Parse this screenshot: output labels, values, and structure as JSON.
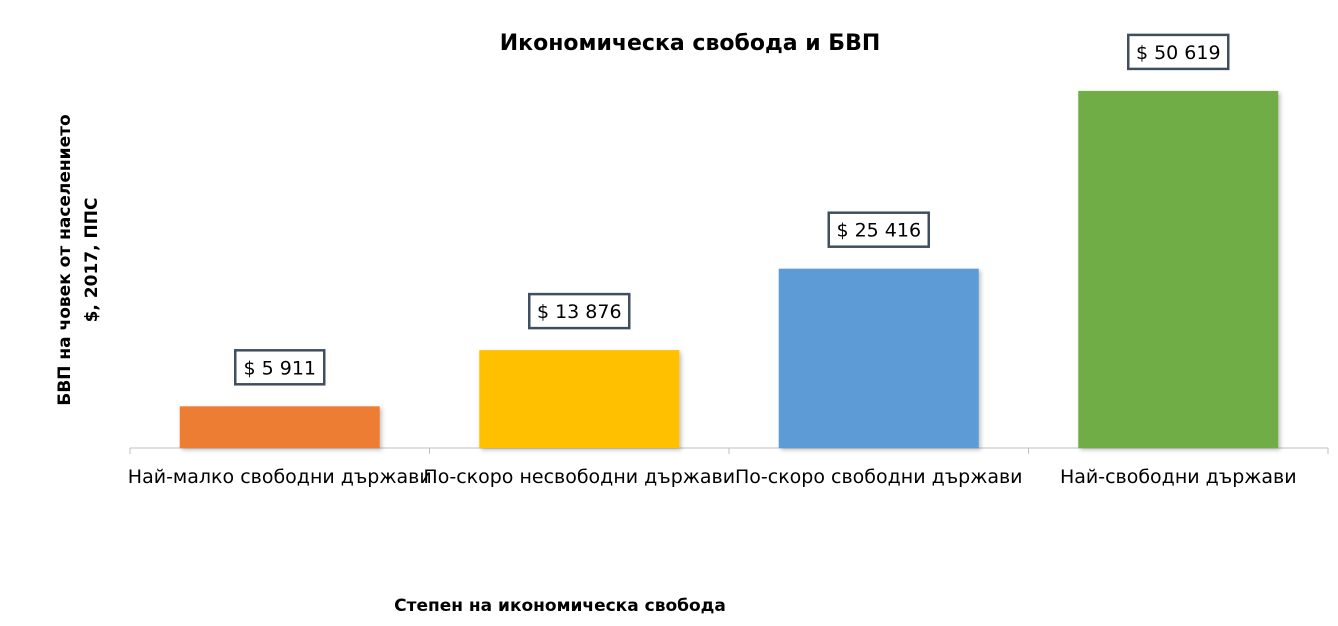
{
  "chart_data": {
    "type": "bar",
    "title": "Икономическа свобода и БВП",
    "xlabel": "Степен на икономическа свобода",
    "ylabel_lines": [
      "БВП на човек от населението",
      "$, 2017, ППС"
    ],
    "categories": [
      "Най-малко свободни държави",
      "По-скоро несвободни държави",
      "По-скоро свободни държави",
      "Най-свободни държави"
    ],
    "values": [
      5911,
      13876,
      25416,
      50619
    ],
    "data_labels": [
      "$ 5 911",
      "$ 13 876",
      "$ 25 416",
      "$ 50 619"
    ],
    "colors": [
      "#ed7d31",
      "#ffc000",
      "#5b9bd5",
      "#70ad47"
    ],
    "ylim": [
      0,
      55000
    ],
    "grid": false,
    "legend": "none"
  }
}
